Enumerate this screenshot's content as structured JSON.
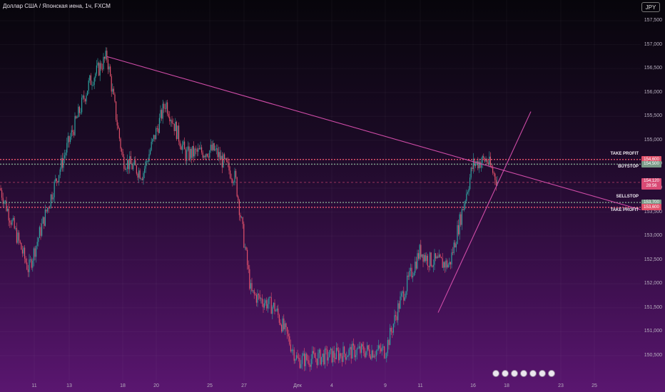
{
  "header": {
    "title": "Доллар США / Японская иена, 1ч, FXCM",
    "currency_button": "JPY"
  },
  "chart_data": {
    "type": "candlestick",
    "title": "Доллар США / Японская иена, 1ч, FXCM",
    "y_axis": {
      "ticks": [
        "157,500",
        "157,000",
        "156,500",
        "156,000",
        "155,500",
        "155,000",
        "154,500",
        "154,000",
        "153,500",
        "153,000",
        "152,500",
        "152,000",
        "151,500",
        "151,000",
        "150,500"
      ],
      "range": [
        150.3,
        157.7
      ]
    },
    "x_axis": {
      "ticks": [
        "11",
        "13",
        "18",
        "20",
        "25",
        "27",
        "Дек",
        "4",
        "9",
        "11",
        "16",
        "18",
        "23",
        "25"
      ]
    },
    "approx_close_path": [
      {
        "x": "11",
        "y": 154.0
      },
      {
        "x": "13",
        "y": 154.9
      },
      {
        "x": "13-14",
        "y": 156.2
      },
      {
        "x": "14 peak",
        "y": 156.75
      },
      {
        "x": "18",
        "y": 154.6
      },
      {
        "x": "20",
        "y": 155.8
      },
      {
        "x": "25",
        "y": 154.7
      },
      {
        "x": "27",
        "y": 154.2
      },
      {
        "x": "28",
        "y": 151.8
      },
      {
        "x": "Дек",
        "y": 150.4
      },
      {
        "x": "4",
        "y": 150.5
      },
      {
        "x": "9",
        "y": 150.6
      },
      {
        "x": "11",
        "y": 152.7
      },
      {
        "x": "13",
        "y": 152.4
      },
      {
        "x": "16",
        "y": 154.5
      },
      {
        "x": "17",
        "y": 154.12
      }
    ],
    "trendlines": [
      {
        "from": {
          "x": "14",
          "y": 156.75
        },
        "to": {
          "x": "right edge",
          "y": 153.6
        },
        "color": "#d04ca8"
      },
      {
        "from": {
          "x": "12",
          "y": 151.3
        },
        "to": {
          "x": "19",
          "y": 155.5
        },
        "color": "#d04ca8"
      }
    ],
    "orders": [
      {
        "label": "TAKE PROFIT",
        "price": "154,600",
        "color": "#e0506a"
      },
      {
        "label": "BUYSTOP",
        "price": "154,500",
        "color": "#7a9a88"
      },
      {
        "label": "SELLSTOP",
        "price": "153,700",
        "color": "#7a9a88"
      },
      {
        "label": "TAKE PROFIT",
        "price": "153,600",
        "color": "#e0506a"
      }
    ],
    "current_price": {
      "value": "154,120",
      "countdown": "28:56",
      "color": "#d94a75"
    },
    "colors": {
      "up": "#2ea3a0",
      "down": "#e0506a"
    }
  }
}
